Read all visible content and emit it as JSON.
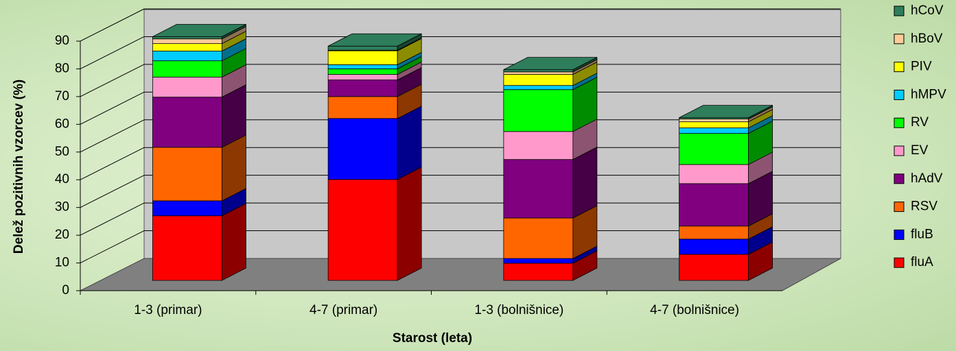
{
  "chart_data": {
    "type": "bar3d_stacked",
    "x_label": "Starost (leta)",
    "y_label": "Delež pozitivnih vzorcev (%)",
    "categories": [
      "1-3 (primar)",
      "4-7 (primar)",
      "1-3 (bolnišnice)",
      "4-7 (bolnišnice)"
    ],
    "series": [
      {
        "name": "fluA",
        "color": "#ff0000",
        "values": [
          23.3,
          36.4,
          6.2,
          9.4
        ]
      },
      {
        "name": "fluB",
        "color": "#0000ff",
        "values": [
          5.4,
          22,
          1.7,
          5.5
        ]
      },
      {
        "name": "RSV",
        "color": "#ff6600",
        "values": [
          19.3,
          7.9,
          14.6,
          4.7
        ]
      },
      {
        "name": "hAdV",
        "color": "#800080",
        "values": [
          18.1,
          6,
          21.1,
          15.3
        ]
      },
      {
        "name": "EV",
        "color": "#ff99cc",
        "values": [
          7.2,
          2,
          10.1,
          6.9
        ]
      },
      {
        "name": "RV",
        "color": "#00ff00",
        "values": [
          5.9,
          2,
          15.1,
          11.2
        ]
      },
      {
        "name": "hMPV",
        "color": "#00ccff",
        "values": [
          3.5,
          1.5,
          1.5,
          2
        ]
      },
      {
        "name": "PIV",
        "color": "#ffff00",
        "values": [
          2.7,
          5,
          4,
          2.2
        ]
      },
      {
        "name": "hBoV",
        "color": "#ffcc99",
        "values": [
          1.7,
          0.2,
          0.9,
          1
        ]
      },
      {
        "name": "hCoV",
        "color": "#2e7d5b",
        "values": [
          0.8,
          1.5,
          0.8,
          0.5
        ]
      }
    ],
    "ylim": [
      0,
      90
    ],
    "yticks": [
      0,
      10,
      20,
      30,
      40,
      50,
      60,
      70,
      80,
      90
    ],
    "grid": true,
    "legend": "right"
  }
}
